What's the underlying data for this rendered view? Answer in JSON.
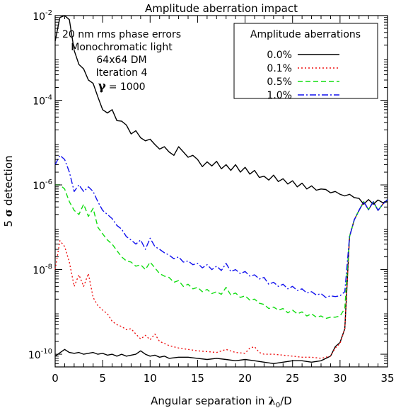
{
  "chart_data": {
    "type": "line",
    "title": "Amplitude aberration impact",
    "xlabel": {
      "text": "Angular separation in ",
      "lambda": "λ",
      "sub": "0",
      "tail": "/D"
    },
    "ylabel": {
      "prefix": "5 ",
      "sigma": "σ",
      "suffix": " detection"
    },
    "xlim": [
      0,
      35
    ],
    "ylim_log10": [
      -10.3,
      -2
    ],
    "yscale": "log",
    "grid": false,
    "x_ticks": [
      0,
      5,
      10,
      15,
      20,
      25,
      30,
      35
    ],
    "x_tick_labels": [
      "0",
      "5",
      "10",
      "15",
      "20",
      "25",
      "30",
      "35"
    ],
    "y_tick_exps": [
      -10,
      -8,
      -6,
      -4,
      -2
    ],
    "y_tick_labels": [
      {
        "base": "10",
        "exp": "-10"
      },
      {
        "base": "10",
        "exp": "-8"
      },
      {
        "base": "10",
        "exp": "-6"
      },
      {
        "base": "10",
        "exp": "-4"
      },
      {
        "base": "10",
        "exp": "-2"
      }
    ],
    "annotations": {
      "lines": [
        "20 nm rms phase errors",
        "Monochromatic light",
        "64x64 DM",
        "Iteration 4"
      ],
      "gamma": {
        "symbol": "γ",
        "value": "= 1000"
      }
    },
    "legend": {
      "title": "Amplitude aberrations",
      "placement": "top-right"
    },
    "series": [
      {
        "name": "0.0%",
        "color": "#000000",
        "dash": "solid",
        "top_x": [
          0,
          0.5,
          1,
          1.5,
          2,
          2.5,
          3,
          3.5,
          4,
          4.5,
          5,
          5.5,
          6,
          6.5,
          7,
          7.5,
          8,
          8.5,
          9,
          9.5,
          10,
          10.5,
          11,
          11.5,
          12,
          12.5,
          13,
          13.5,
          14,
          14.5,
          15,
          15.5,
          16,
          16.5,
          17,
          17.5,
          18,
          18.5,
          19,
          19.5,
          20,
          20.5,
          21,
          21.5,
          22,
          22.5,
          23,
          23.5,
          24,
          24.5,
          25,
          25.5,
          26,
          26.5,
          27,
          27.5,
          28,
          28.5,
          29,
          29.5,
          30,
          30.5,
          31,
          31.5,
          32,
          32.5,
          33,
          33.5,
          34,
          34.5,
          35
        ],
        "top_y": [
          0.0025,
          0.009,
          0.012,
          0.008,
          0.0015,
          0.0007,
          0.00055,
          0.0003,
          0.00025,
          0.00012,
          6e-05,
          5e-05,
          6e-05,
          3.3e-05,
          3.2e-05,
          2.6e-05,
          1.6e-05,
          1.9e-05,
          1.3e-05,
          1.1e-05,
          1.2e-05,
          9e-06,
          7e-06,
          8e-06,
          6e-06,
          5e-06,
          8e-06,
          6e-06,
          4.5e-06,
          5e-06,
          4e-06,
          2.7e-06,
          3.5e-06,
          2.8e-06,
          3.6e-06,
          2.4e-06,
          3e-06,
          2.2e-06,
          3e-06,
          2e-06,
          2.6e-06,
          1.8e-06,
          2.2e-06,
          1.5e-06,
          1.6e-06,
          1.3e-06,
          1.7e-06,
          1.2e-06,
          1.4e-06,
          1.05e-06,
          1.25e-06,
          9e-07,
          1.1e-06,
          8e-07,
          9.5e-07,
          7.5e-07,
          8e-07,
          7.8e-07,
          6.5e-07,
          7e-07,
          6e-07,
          5.5e-07,
          6e-07,
          5e-07,
          4.8e-07,
          3.5e-07,
          4.5e-07,
          3.5e-07,
          4.4e-07,
          3.8e-07,
          4e-07
        ],
        "bottom_x": [
          0,
          1,
          1.5,
          2,
          2.5,
          3,
          3.5,
          4,
          4.5,
          5,
          5.5,
          6,
          6.5,
          7,
          7.5,
          8,
          8.5,
          9,
          9.5,
          10,
          10.5,
          11,
          11.5,
          12,
          13,
          14,
          15,
          16,
          17,
          18,
          19,
          20,
          21,
          22,
          23,
          24,
          25,
          26,
          27,
          28,
          29,
          29.5,
          30,
          30.5,
          31,
          31.5,
          32,
          32.5,
          33,
          33.5,
          34,
          34.5,
          35
        ],
        "bottom_y": [
          9e-11,
          1.3e-10,
          1.1e-10,
          1.05e-10,
          1.1e-10,
          1e-10,
          1.05e-10,
          1.1e-10,
          1e-10,
          1.05e-10,
          9.5e-11,
          1e-10,
          9e-11,
          1e-10,
          9e-11,
          9.5e-11,
          1e-10,
          1.2e-10,
          1e-10,
          9e-11,
          9.5e-11,
          8.5e-11,
          9e-11,
          8e-11,
          8.5e-11,
          8.5e-11,
          8e-11,
          7.5e-11,
          8e-11,
          7.5e-11,
          7e-11,
          7.5e-11,
          7e-11,
          6.5e-11,
          6e-11,
          6.5e-11,
          7e-11,
          7e-11,
          6.5e-11,
          7e-11,
          9e-11,
          1.5e-10,
          1.9e-10,
          4e-10,
          6e-08,
          1.5e-07,
          2.5e-07,
          4e-07,
          2.6e-07,
          4e-07,
          2.5e-07,
          3.5e-07,
          4.5e-07
        ]
      },
      {
        "name": "0.1%",
        "color": "#ee1111",
        "dash": "2 3",
        "x": [
          0,
          0.5,
          1,
          1.5,
          2,
          2.5,
          3,
          3.5,
          4,
          4.5,
          5,
          5.5,
          6,
          6.5,
          7,
          7.5,
          8,
          8.5,
          9,
          9.5,
          10,
          10.5,
          11,
          11.5,
          12,
          13,
          14,
          15,
          16,
          17,
          18,
          19,
          20,
          20.5,
          21,
          21.5,
          22,
          23,
          24,
          25,
          26,
          27,
          28,
          29,
          29.5,
          30,
          30.5,
          31,
          31.5,
          32,
          32.5,
          33,
          33.5,
          34,
          34.5,
          35
        ],
        "y": [
          1e-08,
          4.8e-08,
          3.5e-08,
          1.5e-08,
          4e-09,
          7.5e-09,
          4e-09,
          8e-09,
          2.2e-09,
          1.4e-09,
          1.1e-09,
          9e-10,
          6e-10,
          5e-10,
          4.5e-10,
          3.8e-10,
          4e-10,
          3e-10,
          2.3e-10,
          2.8e-10,
          2.2e-10,
          3e-10,
          2e-10,
          1.8e-10,
          1.6e-10,
          1.4e-10,
          1.3e-10,
          1.2e-10,
          1.15e-10,
          1.1e-10,
          1.3e-10,
          1.1e-10,
          1.05e-10,
          1.4e-10,
          1.5e-10,
          1.1e-10,
          1e-10,
          1e-10,
          9.5e-11,
          9e-11,
          8.5e-11,
          8.5e-11,
          8e-11,
          9e-11,
          1.4e-10,
          1.8e-10,
          4e-10,
          6e-08,
          1.5e-07,
          2.5e-07,
          4e-07,
          2.6e-07,
          4e-07,
          2.5e-07,
          3.5e-07,
          4.5e-07
        ]
      },
      {
        "name": "0.5%",
        "color": "#11dd11",
        "dash": "7 4",
        "x": [
          0,
          0.5,
          1,
          1.5,
          2,
          2.5,
          3,
          3.5,
          4,
          4.5,
          5,
          5.5,
          6,
          6.5,
          7,
          7.5,
          8,
          8.5,
          9,
          9.5,
          10,
          10.5,
          11,
          11.5,
          12,
          12.5,
          13,
          13.5,
          14,
          14.5,
          15,
          15.5,
          16,
          16.5,
          17,
          17.5,
          18,
          18.5,
          19,
          19.5,
          20,
          20.5,
          21,
          21.5,
          22,
          22.5,
          23,
          23.5,
          24,
          24.5,
          25,
          25.5,
          26,
          26.5,
          27,
          27.5,
          28,
          28.5,
          29,
          29.5,
          30,
          30.5,
          31,
          31.5,
          32,
          32.5,
          33,
          33.5,
          34,
          34.5,
          35
        ],
        "y": [
          1e-06,
          1e-06,
          8e-07,
          4e-07,
          2.5e-07,
          2e-07,
          3.5e-07,
          1.8e-07,
          2.8e-07,
          1e-07,
          7e-08,
          5e-08,
          4e-08,
          2.8e-08,
          2e-08,
          1.6e-08,
          1.5e-08,
          1.2e-08,
          1.3e-08,
          1e-08,
          1.5e-08,
          1.1e-08,
          8e-09,
          7e-09,
          6.5e-09,
          5e-09,
          5.5e-09,
          4e-09,
          4.5e-09,
          3.5e-09,
          3.8e-09,
          3e-09,
          3.4e-09,
          2.7e-09,
          3e-09,
          2.6e-09,
          3.8e-09,
          2.5e-09,
          2.8e-09,
          2.2e-09,
          2.4e-09,
          1.9e-09,
          2e-09,
          1.6e-09,
          1.5e-09,
          1.2e-09,
          1.3e-09,
          1.1e-09,
          1.2e-09,
          9.5e-10,
          1.1e-09,
          9e-10,
          1e-09,
          8e-10,
          9e-10,
          7.5e-10,
          8e-10,
          7e-10,
          7.5e-10,
          7.5e-10,
          8e-10,
          1.2e-09,
          6e-08,
          1.5e-07,
          2.5e-07,
          4e-07,
          2.6e-07,
          4e-07,
          2.5e-07,
          3.5e-07,
          4.5e-07
        ]
      },
      {
        "name": "1.0%",
        "color": "#1111ee",
        "dash": "9 3 2 3",
        "x": [
          0,
          0.5,
          1,
          1.5,
          2,
          2.5,
          3,
          3.5,
          4,
          4.5,
          5,
          5.5,
          6,
          6.5,
          7,
          7.5,
          8,
          8.5,
          9,
          9.5,
          10,
          10.5,
          11,
          11.5,
          12,
          12.5,
          13,
          13.5,
          14,
          14.5,
          15,
          15.5,
          16,
          16.5,
          17,
          17.5,
          18,
          18.5,
          19,
          19.5,
          20,
          20.5,
          21,
          21.5,
          22,
          22.5,
          23,
          23.5,
          24,
          24.5,
          25,
          25.5,
          26,
          26.5,
          27,
          27.5,
          28,
          28.5,
          29,
          29.5,
          30,
          30.5,
          31,
          31.5,
          32,
          32.5,
          33,
          33.5,
          34,
          34.5,
          35
        ],
        "y": [
          3e-06,
          5e-06,
          4e-06,
          2e-06,
          7e-07,
          1e-06,
          7e-07,
          9e-07,
          7e-07,
          4e-07,
          2.5e-07,
          2e-07,
          1.6e-07,
          1.1e-07,
          9e-08,
          6e-08,
          5e-08,
          4e-08,
          5e-08,
          3e-08,
          5.5e-08,
          3.5e-08,
          3e-08,
          2.5e-08,
          2.2e-08,
          1.8e-08,
          2e-08,
          1.5e-08,
          1.6e-08,
          1.3e-08,
          1.4e-08,
          1.1e-08,
          1.3e-08,
          1e-08,
          1.2e-08,
          9.5e-09,
          1.4e-08,
          9e-09,
          1e-08,
          8e-09,
          9e-09,
          7e-09,
          7.5e-09,
          6e-09,
          6.5e-09,
          4.5e-09,
          5e-09,
          4e-09,
          4.5e-09,
          3.5e-09,
          4e-09,
          3.2e-09,
          3.5e-09,
          2.8e-09,
          3e-09,
          2.5e-09,
          2.7e-09,
          2.2e-09,
          2.4e-09,
          2.3e-09,
          2.4e-09,
          3e-09,
          6e-08,
          1.5e-07,
          2.5e-07,
          4e-07,
          2.6e-07,
          4e-07,
          2.5e-07,
          3.5e-07,
          4.5e-07
        ]
      }
    ]
  }
}
